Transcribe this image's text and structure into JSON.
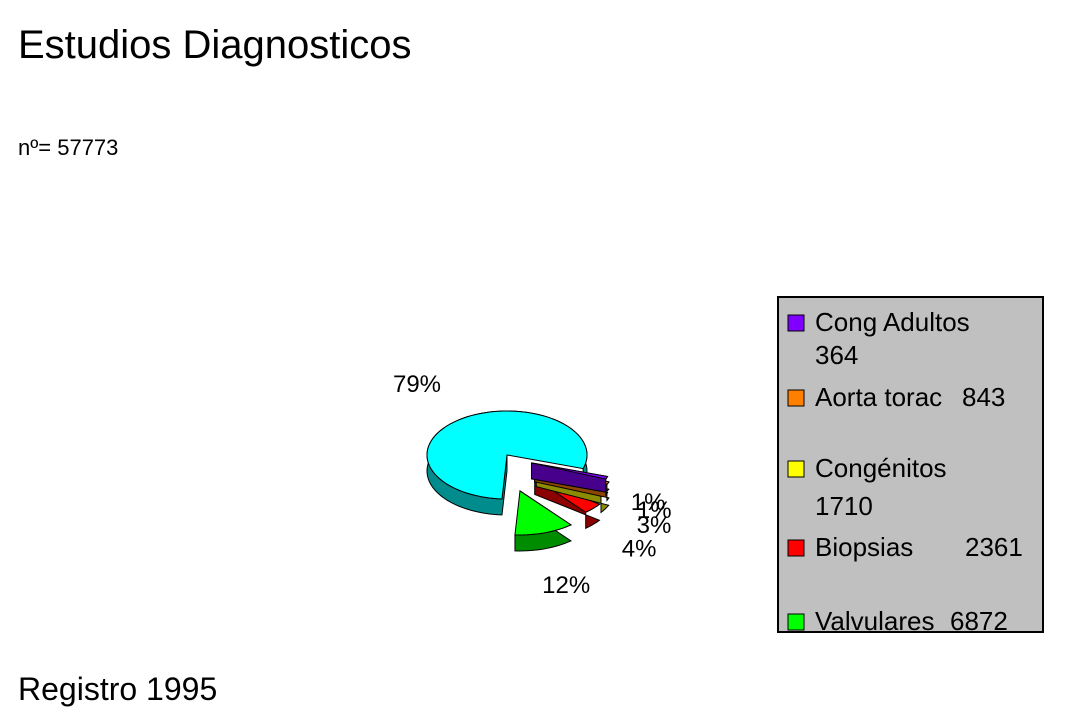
{
  "chart_data": {
    "type": "pie3d",
    "title": "Estudios Diagnosticos",
    "subtitle": "nº= 57773",
    "footer": "Registro 1995",
    "categories": [
      null,
      "Valvulares",
      "Biopsias",
      "Congénitos",
      "Aorta torac",
      "Cong Adultos"
    ],
    "counts": [
      null,
      6872,
      2361,
      1710,
      843,
      364
    ],
    "values": [
      79,
      12,
      4,
      3,
      1,
      1
    ],
    "value_labels": [
      "79%",
      "12%",
      "4%",
      "3%",
      "1%",
      "1%"
    ],
    "colors": [
      "#00ffff",
      "#00ff00",
      "#ff0000",
      "#ffff00",
      "#ff8000",
      "#8000ff"
    ]
  }
}
